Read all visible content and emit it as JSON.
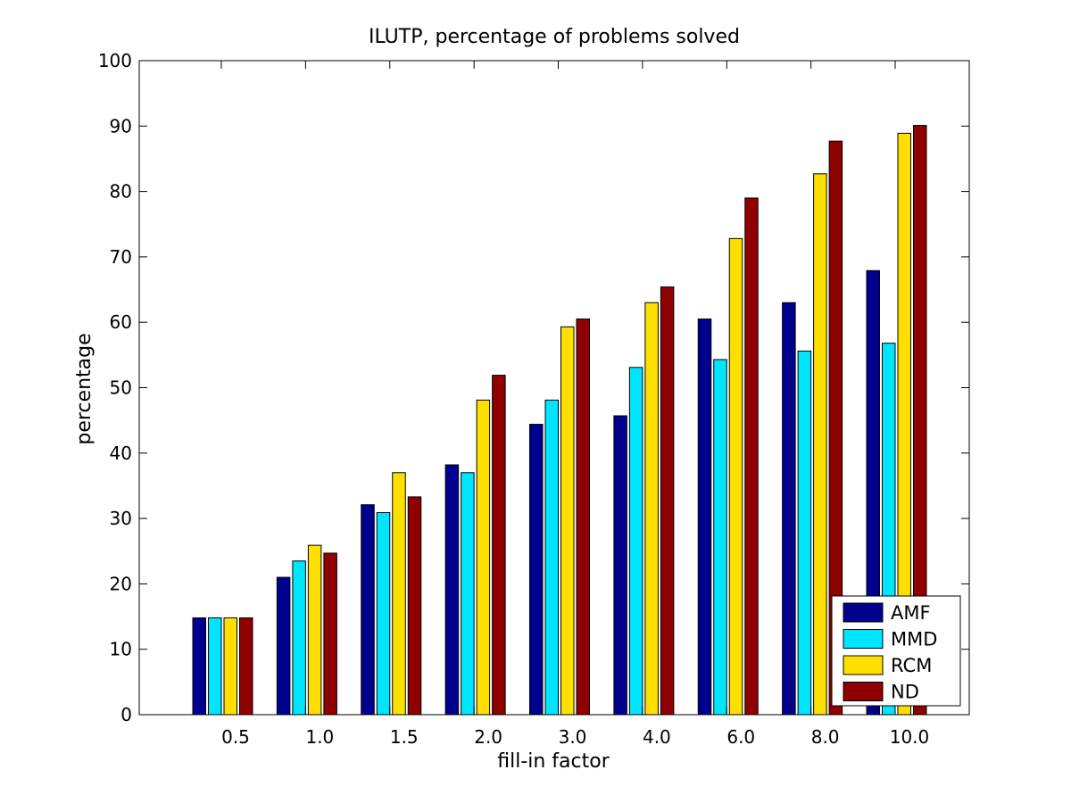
{
  "chart_data": {
    "type": "bar",
    "title": "ILUTP, percentage of problems solved",
    "xlabel": "fill-in factor",
    "ylabel": "percentage",
    "categories": [
      "0.5",
      "1.0",
      "1.5",
      "2.0",
      "3.0",
      "4.0",
      "6.0",
      "8.0",
      "10.0"
    ],
    "ylim": [
      0,
      100
    ],
    "yticks": [
      0,
      10,
      20,
      30,
      40,
      50,
      60,
      70,
      80,
      90,
      100
    ],
    "grid": false,
    "legend_position": "bottom-right",
    "series": [
      {
        "name": "AMF",
        "color": "#00008f",
        "values": [
          14.8,
          21.0,
          32.1,
          38.2,
          44.4,
          45.7,
          60.5,
          63.0,
          67.9
        ]
      },
      {
        "name": "MMD",
        "color": "#00e5ff",
        "values": [
          14.8,
          23.5,
          30.9,
          37.0,
          48.1,
          53.1,
          54.3,
          55.6,
          56.8
        ]
      },
      {
        "name": "RCM",
        "color": "#ffdf00",
        "values": [
          14.8,
          25.9,
          37.0,
          48.1,
          59.3,
          63.0,
          72.8,
          82.7,
          88.9
        ]
      },
      {
        "name": "ND",
        "color": "#8f0000",
        "values": [
          14.8,
          24.7,
          33.3,
          51.9,
          60.5,
          65.4,
          79.0,
          87.7,
          90.1
        ]
      }
    ]
  }
}
